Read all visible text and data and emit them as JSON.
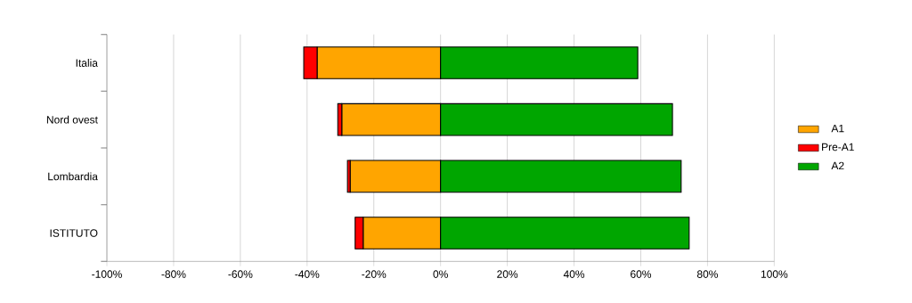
{
  "chart_data": {
    "type": "bar",
    "orientation": "horizontal",
    "stacked": true,
    "categories": [
      "Italia",
      "Nord ovest",
      "Lombardia",
      "ISTITUTO"
    ],
    "series": [
      {
        "name": "A1",
        "color": "#ffa500",
        "values": [
          -37.0,
          -29.6,
          -27.1,
          -23.2
        ]
      },
      {
        "name": "Pre-A1",
        "color": "#ff0000",
        "values": [
          -4.0,
          -1.2,
          -0.8,
          -2.4
        ]
      },
      {
        "name": "A2",
        "color": "#00a600",
        "values": [
          59.1,
          69.5,
          72.1,
          74.5
        ]
      }
    ],
    "xlim": [
      -100,
      100
    ],
    "xticks": [
      {
        "value": -100,
        "label": "-100%"
      },
      {
        "value": -80,
        "label": "-80%"
      },
      {
        "value": -60,
        "label": "-60%"
      },
      {
        "value": -40,
        "label": "-40%"
      },
      {
        "value": -20,
        "label": "-20%"
      },
      {
        "value": 0,
        "label": "0%"
      },
      {
        "value": 20,
        "label": "20%"
      },
      {
        "value": 40,
        "label": "40%"
      },
      {
        "value": 60,
        "label": "60%"
      },
      {
        "value": 80,
        "label": "80%"
      },
      {
        "value": 100,
        "label": "100%"
      }
    ],
    "grid": "x",
    "legend": "right"
  }
}
